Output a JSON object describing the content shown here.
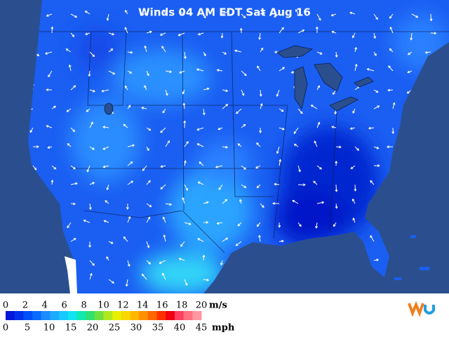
{
  "title": "Winds 04 AM EDT Sat Aug 16",
  "legend": {
    "ms_ticks": [
      0,
      2,
      4,
      6,
      8,
      10,
      12,
      14,
      16,
      18,
      20
    ],
    "ms_unit": "m/s",
    "mph_ticks": [
      0,
      5,
      10,
      15,
      20,
      25,
      30,
      35,
      40,
      45
    ],
    "mph_unit": "mph",
    "colors": [
      "#0018d8",
      "#0030ec",
      "#0050f8",
      "#0a6cff",
      "#1a8cff",
      "#1eaaff",
      "#18c8ff",
      "#10e4f0",
      "#10e8b0",
      "#30e070",
      "#70e040",
      "#b0e820",
      "#e8f000",
      "#f8d800",
      "#ffb800",
      "#ff9000",
      "#ff6800",
      "#ff3000",
      "#f00010",
      "#ff4060",
      "#ff7080",
      "#ff98a0"
    ]
  }
}
